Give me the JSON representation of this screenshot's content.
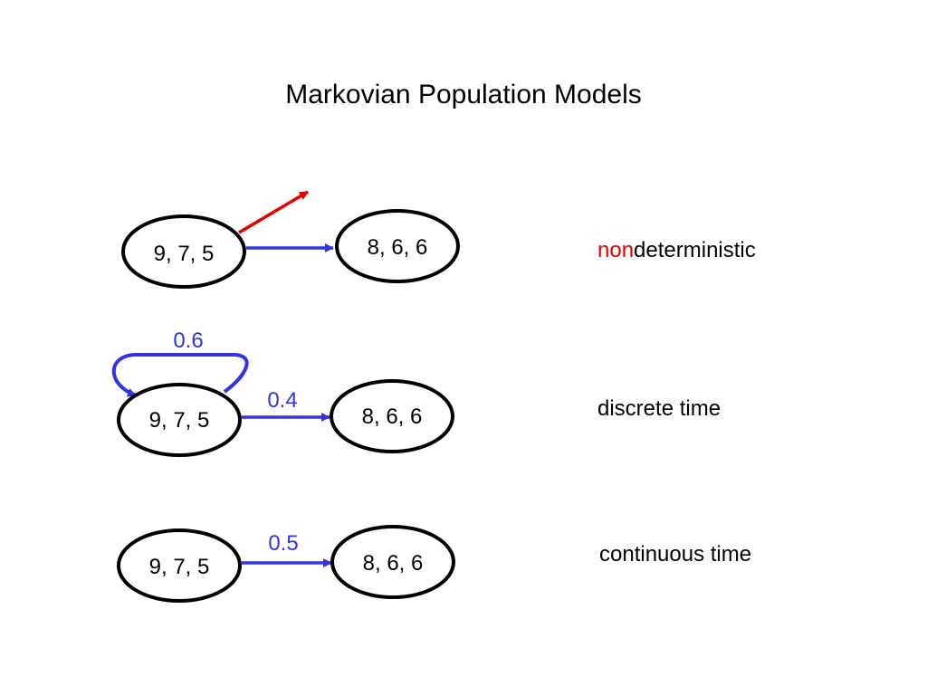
{
  "title": "Markovian Population Models",
  "colors": {
    "arrow": "#3333e6",
    "nondet": "#e60000",
    "node": "#000000"
  },
  "rows": [
    {
      "label_prefix": "non",
      "label": "deterministic",
      "from_state": "9, 7, 5",
      "to_state": "8, 6, 6"
    },
    {
      "label": "discrete time",
      "from_state": "9, 7, 5",
      "to_state": "8, 6, 6",
      "self_loop_prob": "0.6",
      "transition_prob": "0.4"
    },
    {
      "label": "continuous time",
      "from_state": "9, 7, 5",
      "to_state": "8, 6, 6",
      "transition_rate": "0.5"
    }
  ]
}
